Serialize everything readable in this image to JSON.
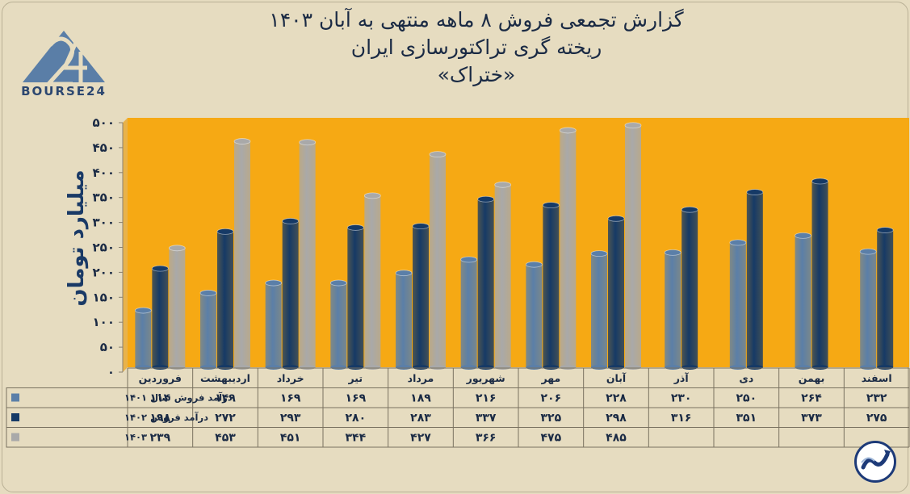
{
  "header": {
    "title_line1": "گزارش تجمعی فروش ۸ ماهه منتهی به آبان ۱۴۰۳",
    "title_line2": "ریخته گری تراکتورسازی ایران",
    "title_line3": "«ختراک»"
  },
  "logo": {
    "text": "BOURSE24",
    "mark": "24",
    "icon": "bourse24-logo"
  },
  "emblem": {
    "icon": "trend-arrow-icon"
  },
  "colors": {
    "plot_bg": "#f6a914",
    "s1401": "#5b7fa8",
    "s1402": "#163a66",
    "s1403": "#a9a9a9"
  },
  "chart_data": {
    "type": "bar",
    "ylabel": "میلیارد تومان",
    "ylim": [
      0,
      500
    ],
    "yticks": [
      "۰",
      "۵۰",
      "۱۰۰",
      "۱۵۰",
      "۲۰۰",
      "۲۵۰",
      "۳۰۰",
      "۳۵۰",
      "۴۰۰",
      "۴۵۰",
      "۵۰۰"
    ],
    "ytick_values": [
      0,
      50,
      100,
      150,
      200,
      250,
      300,
      350,
      400,
      450,
      500
    ],
    "categories": [
      "فروردین",
      "اردیبهشت",
      "خرداد",
      "تیر",
      "مرداد",
      "شهریور",
      "مهر",
      "آبان",
      "آذر",
      "دی",
      "بهمن",
      "اسفند"
    ],
    "series": [
      {
        "name": "درآمد فروش سال ۱۴۰۱",
        "color": "#5b7fa8",
        "values": [
          114,
          149,
          169,
          169,
          189,
          216,
          206,
          228,
          230,
          250,
          264,
          232
        ],
        "labels": [
          "۱۱۴",
          "۱۴۹",
          "۱۶۹",
          "۱۶۹",
          "۱۸۹",
          "۲۱۶",
          "۲۰۶",
          "۲۲۸",
          "۲۳۰",
          "۲۵۰",
          "۲۶۴",
          "۲۳۲"
        ]
      },
      {
        "name": "درآمد فروش ۱۴۰۲",
        "color": "#163a66",
        "values": [
          198,
          272,
          293,
          280,
          283,
          337,
          325,
          298,
          316,
          351,
          373,
          275
        ],
        "labels": [
          "۱۹۸",
          "۲۷۲",
          "۲۹۳",
          "۲۸۰",
          "۲۸۳",
          "۳۳۷",
          "۳۲۵",
          "۲۹۸",
          "۳۱۶",
          "۳۵۱",
          "۳۷۳",
          "۲۷۵"
        ]
      },
      {
        "name": "۱۴۰۳",
        "color": "#a9a9a9",
        "values": [
          239,
          453,
          451,
          344,
          427,
          366,
          475,
          485,
          null,
          null,
          null,
          null
        ],
        "labels": [
          "۲۳۹",
          "۴۵۳",
          "۴۵۱",
          "۳۴۴",
          "۴۲۷",
          "۳۶۶",
          "۴۷۵",
          "۴۸۵",
          "",
          "",
          "",
          ""
        ]
      }
    ],
    "grid": false,
    "legend": "table-below"
  }
}
